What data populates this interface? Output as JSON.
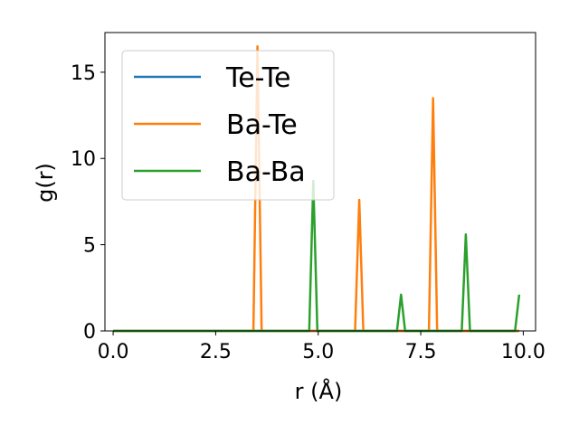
{
  "chart_data": {
    "type": "line",
    "title": "",
    "xlabel": "r (Å)",
    "ylabel": "g(r)",
    "xlim": [
      -0.2,
      10.3
    ],
    "ylim": [
      0,
      17.3
    ],
    "xticks": [
      0.0,
      2.5,
      5.0,
      7.5,
      10.0
    ],
    "xtick_labels": [
      "0.0",
      "2.5",
      "5.0",
      "7.5",
      "10.0"
    ],
    "yticks": [
      0,
      5,
      10,
      15
    ],
    "ytick_labels": [
      "0",
      "5",
      "10",
      "15"
    ],
    "grid": false,
    "legend_position": "top-left",
    "series": [
      {
        "name": "Te-Te",
        "color": "#1f77b4",
        "x": [
          0.0,
          9.9
        ],
        "y": [
          0.0,
          0.0
        ]
      },
      {
        "name": "Ba-Te",
        "color": "#ff7f0e",
        "x": [
          0.0,
          3.42,
          3.52,
          3.62,
          5.9,
          6.0,
          6.1,
          7.7,
          7.8,
          7.9,
          9.9
        ],
        "y": [
          0.0,
          0.0,
          16.5,
          0.0,
          0.0,
          7.6,
          0.0,
          0.0,
          13.5,
          0.0,
          0.0
        ]
      },
      {
        "name": "Ba-Ba",
        "color": "#2ca02c",
        "x": [
          0.0,
          4.78,
          4.88,
          4.98,
          6.92,
          7.02,
          7.12,
          8.5,
          8.6,
          8.7,
          9.8,
          9.9
        ],
        "y": [
          0.0,
          0.0,
          8.7,
          0.0,
          0.0,
          2.1,
          0.0,
          0.0,
          5.6,
          0.0,
          0.0,
          2.1
        ]
      }
    ]
  }
}
